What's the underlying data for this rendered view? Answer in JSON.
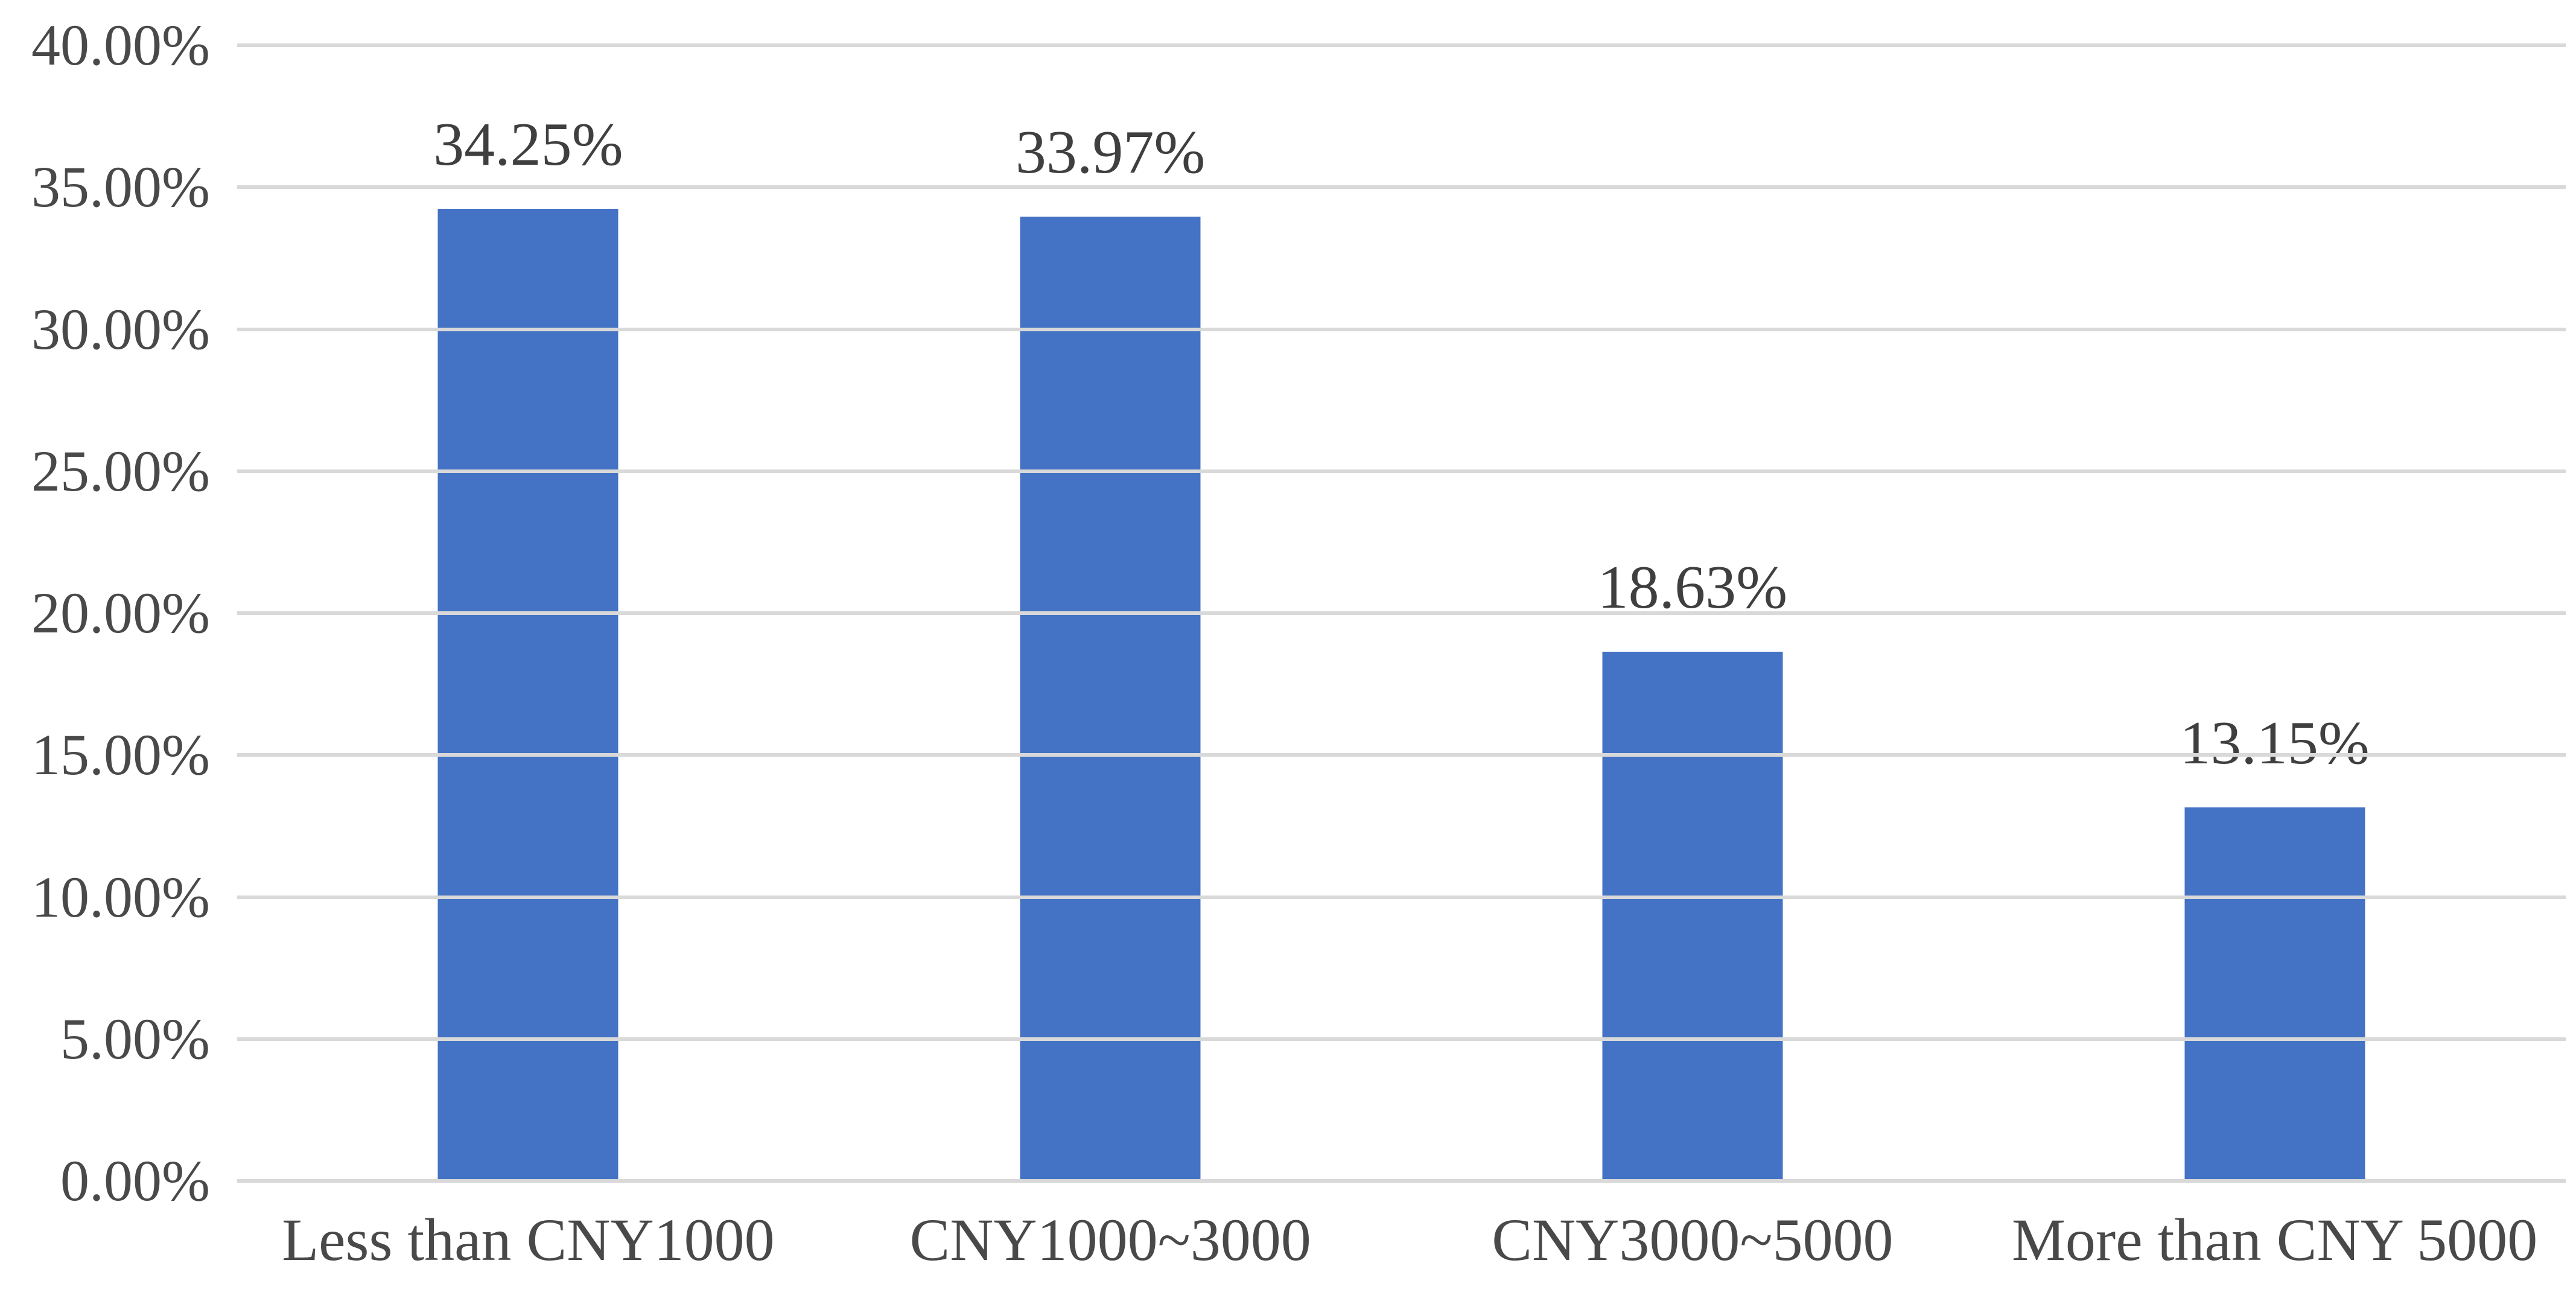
{
  "chart_data": {
    "type": "bar",
    "title": "",
    "xlabel": "",
    "ylabel": "",
    "categories": [
      "Less than CNY1000",
      "CNY1000~3000",
      "CNY3000~5000",
      "More than CNY 5000"
    ],
    "values": [
      34.25,
      33.97,
      18.63,
      13.15
    ],
    "data_labels": [
      "34.25%",
      "33.97%",
      "18.63%",
      "13.15%"
    ],
    "y_ticks": [
      {
        "value": 40,
        "label": "40.00%"
      },
      {
        "value": 35,
        "label": "35.00%"
      },
      {
        "value": 30,
        "label": "30.00%"
      },
      {
        "value": 25,
        "label": "25.00%"
      },
      {
        "value": 20,
        "label": "20.00%"
      },
      {
        "value": 15,
        "label": "15.00%"
      },
      {
        "value": 10,
        "label": "10.00%"
      },
      {
        "value": 5,
        "label": "5.00%"
      },
      {
        "value": 0,
        "label": "0.00%"
      }
    ],
    "ylim": [
      0,
      40
    ],
    "grid": "horizontal",
    "legend": "none",
    "colors": {
      "bar": "#4472C4",
      "gridline": "#D9D9D9",
      "axis_text": "#494949",
      "data_label_text": "#3F3F3F",
      "background": "#FFFFFF"
    }
  }
}
